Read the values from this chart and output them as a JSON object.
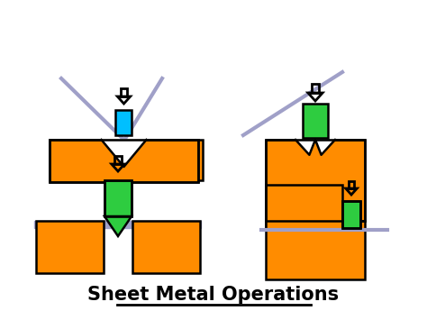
{
  "title": "Sheet Metal Operations",
  "orange": "#FF8C00",
  "green": "#2ECC40",
  "cyan": "#00BFFF",
  "gray_line": "#A0A0C8",
  "black": "#000000",
  "white": "#FFFFFF",
  "bg": "#FFFFFF"
}
